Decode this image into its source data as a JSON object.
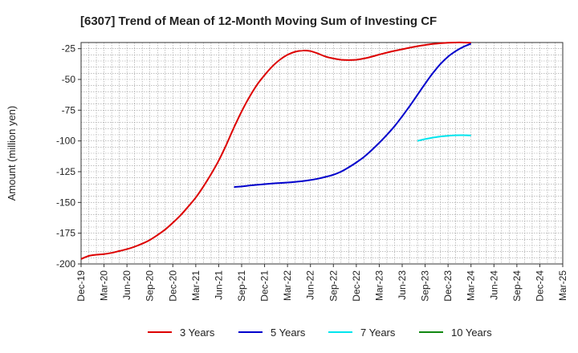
{
  "title": "[6307]  Trend of Mean of 12-Month Moving Sum of Investing CF",
  "colors": {
    "3y": "#dd0000",
    "5y": "#0000cc",
    "7y": "#00e5ee",
    "10y": "#118811",
    "grid": "#999999",
    "axis": "#333333"
  },
  "chart_data": {
    "type": "line",
    "title": "[6307]  Trend of Mean of 12-Month Moving Sum of Investing CF",
    "ylabel": "Amount (million yen)",
    "xlabel": "",
    "ylim": [
      -200,
      -20
    ],
    "yticks": [
      -25,
      -50,
      -75,
      -100,
      -125,
      -150,
      -175,
      -200
    ],
    "ytick_labels": [
      "-25",
      "-50",
      "-75",
      "-100",
      "-125",
      "-150",
      "-175",
      "-200"
    ],
    "xlim": [
      "2019-12",
      "2025-03"
    ],
    "xtick_labels": [
      "Dec-19",
      "Mar-20",
      "Jun-20",
      "Sep-20",
      "Dec-20",
      "Mar-21",
      "Jun-21",
      "Sep-21",
      "Dec-21",
      "Mar-22",
      "Jun-22",
      "Sep-22",
      "Dec-22",
      "Mar-23",
      "Jun-23",
      "Sep-23",
      "Dec-23",
      "Mar-24",
      "Jun-24",
      "Sep-24",
      "Dec-24",
      "Mar-25"
    ],
    "grid": true,
    "legend_position": "bottom",
    "series": [
      {
        "name": "3 Years",
        "color": "#dd0000",
        "points": [
          [
            "2019-12",
            -196
          ],
          [
            "2020-01",
            -193.5
          ],
          [
            "2020-02",
            -192.5
          ],
          [
            "2020-03",
            -192
          ],
          [
            "2020-04",
            -191
          ],
          [
            "2020-05",
            -189.5
          ],
          [
            "2020-06",
            -188
          ],
          [
            "2020-07",
            -186
          ],
          [
            "2020-08",
            -183.5
          ],
          [
            "2020-09",
            -180.5
          ],
          [
            "2020-10",
            -176.5
          ],
          [
            "2020-11",
            -172
          ],
          [
            "2020-12",
            -166.5
          ],
          [
            "2021-01",
            -160.5
          ],
          [
            "2021-02",
            -153.5
          ],
          [
            "2021-03",
            -146
          ],
          [
            "2021-04",
            -137
          ],
          [
            "2021-05",
            -127
          ],
          [
            "2021-06",
            -116
          ],
          [
            "2021-07",
            -103
          ],
          [
            "2021-08",
            -89
          ],
          [
            "2021-09",
            -76
          ],
          [
            "2021-10",
            -64.5
          ],
          [
            "2021-11",
            -54.5
          ],
          [
            "2021-12",
            -46.5
          ],
          [
            "2022-01",
            -39.5
          ],
          [
            "2022-02",
            -34
          ],
          [
            "2022-03",
            -30
          ],
          [
            "2022-04",
            -27.5
          ],
          [
            "2022-05",
            -26.5
          ],
          [
            "2022-06",
            -27
          ],
          [
            "2022-07",
            -29
          ],
          [
            "2022-08",
            -31.5
          ],
          [
            "2022-09",
            -33
          ],
          [
            "2022-10",
            -34
          ],
          [
            "2022-11",
            -34.3
          ],
          [
            "2022-12",
            -34
          ],
          [
            "2023-01",
            -33
          ],
          [
            "2023-02",
            -31.5
          ],
          [
            "2023-03",
            -29.8
          ],
          [
            "2023-04",
            -28.2
          ],
          [
            "2023-05",
            -26.8
          ],
          [
            "2023-06",
            -25.5
          ],
          [
            "2023-07",
            -24.2
          ],
          [
            "2023-08",
            -23
          ],
          [
            "2023-09",
            -22
          ],
          [
            "2023-10",
            -21.2
          ],
          [
            "2023-11",
            -20.6
          ],
          [
            "2023-12",
            -20.2
          ],
          [
            "2024-01",
            -20
          ],
          [
            "2024-02",
            -20
          ],
          [
            "2024-03",
            -20.2
          ]
        ]
      },
      {
        "name": "5 Years",
        "color": "#0000cc",
        "points": [
          [
            "2021-08",
            -137.5
          ],
          [
            "2021-09",
            -137
          ],
          [
            "2021-10",
            -136.3
          ],
          [
            "2021-11",
            -135.7
          ],
          [
            "2021-12",
            -135.1
          ],
          [
            "2022-01",
            -134.6
          ],
          [
            "2022-02",
            -134.2
          ],
          [
            "2022-03",
            -133.8
          ],
          [
            "2022-04",
            -133.3
          ],
          [
            "2022-05",
            -132.6
          ],
          [
            "2022-06",
            -131.8
          ],
          [
            "2022-07",
            -130.7
          ],
          [
            "2022-08",
            -129.2
          ],
          [
            "2022-09",
            -127.5
          ],
          [
            "2022-10",
            -125
          ],
          [
            "2022-11",
            -121.5
          ],
          [
            "2022-12",
            -117.5
          ],
          [
            "2023-01",
            -113
          ],
          [
            "2023-02",
            -107.5
          ],
          [
            "2023-03",
            -101.5
          ],
          [
            "2023-04",
            -95
          ],
          [
            "2023-05",
            -88
          ],
          [
            "2023-06",
            -80
          ],
          [
            "2023-07",
            -71.5
          ],
          [
            "2023-08",
            -62.5
          ],
          [
            "2023-09",
            -53.5
          ],
          [
            "2023-10",
            -45
          ],
          [
            "2023-11",
            -37.5
          ],
          [
            "2023-12",
            -31.5
          ],
          [
            "2024-01",
            -27
          ],
          [
            "2024-02",
            -23.5
          ],
          [
            "2024-03",
            -21
          ]
        ]
      },
      {
        "name": "7 Years",
        "color": "#00e5ee",
        "points": [
          [
            "2023-08",
            -100
          ],
          [
            "2023-09",
            -98.5
          ],
          [
            "2023-10",
            -97.3
          ],
          [
            "2023-11",
            -96.4
          ],
          [
            "2023-12",
            -95.8
          ],
          [
            "2024-01",
            -95.4
          ],
          [
            "2024-02",
            -95.3
          ],
          [
            "2024-03",
            -95.6
          ]
        ]
      },
      {
        "name": "10 Years",
        "color": "#118811",
        "points": []
      }
    ]
  }
}
